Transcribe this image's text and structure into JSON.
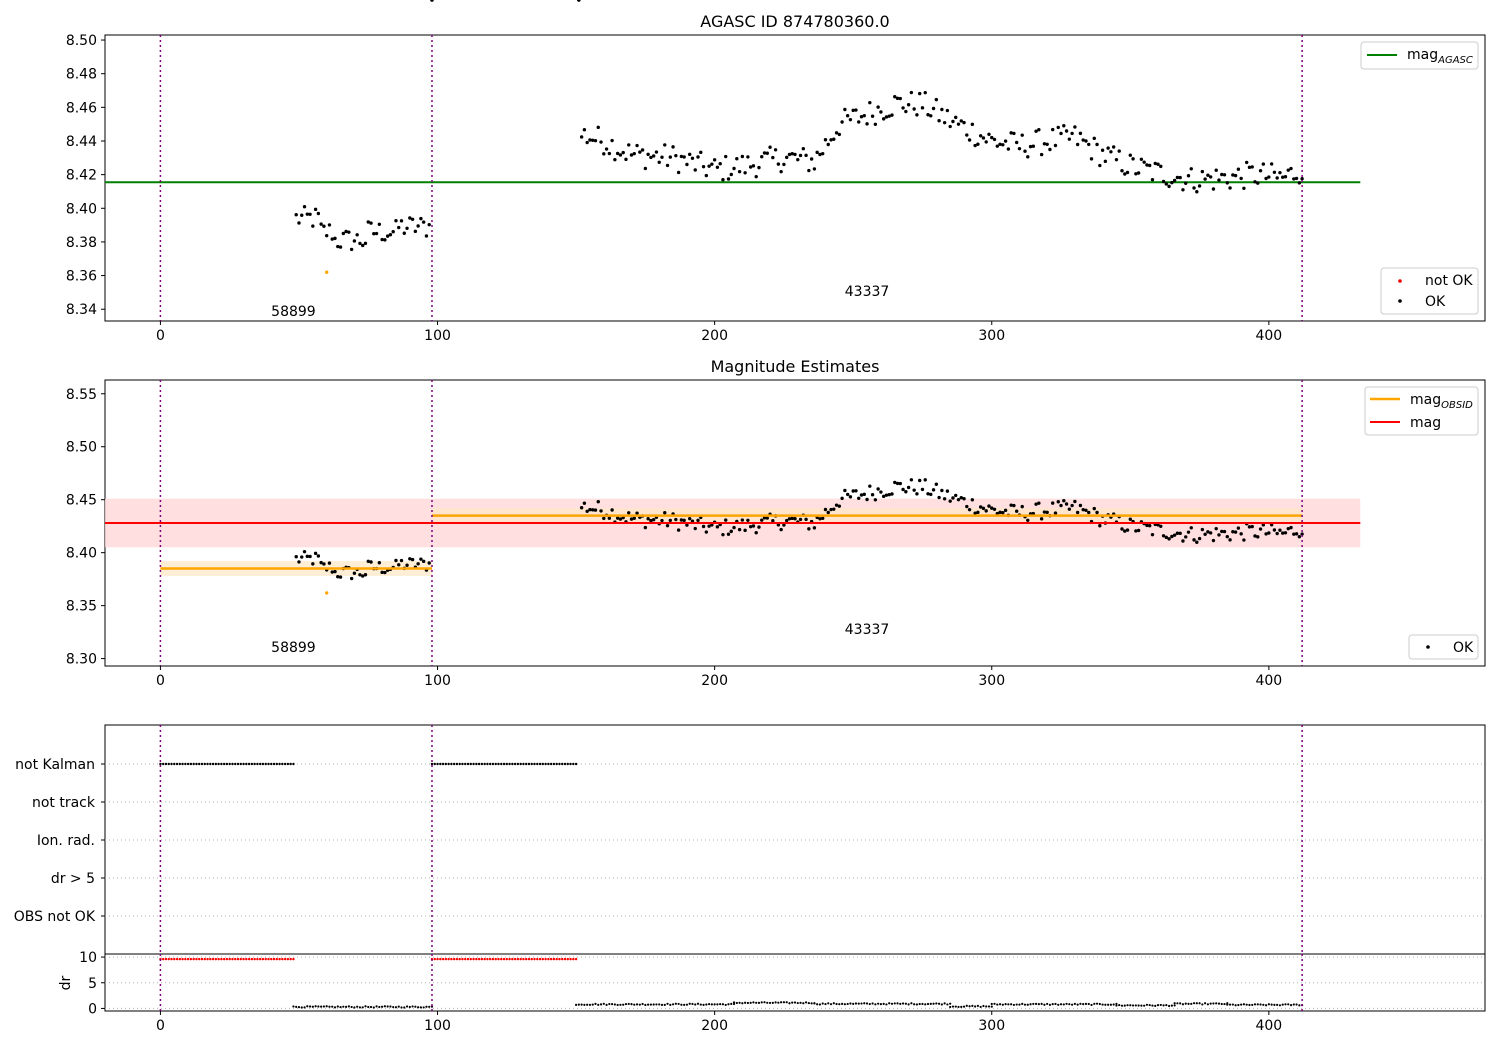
{
  "figure": {
    "colors": {
      "ok": "#000000",
      "not_ok": "#ff0000",
      "agasc_line": "#008000",
      "obsid_line": "#ffa500",
      "mag_line": "#ff0000",
      "band_mag": "#ffd7d7",
      "band_obsid": "#ffe7c4",
      "vline": "#800080",
      "grid": "#b0b0b0"
    }
  },
  "chart_data": [
    {
      "id": "top",
      "type": "scatter",
      "title": "AGASC ID 874780360.0",
      "xlim": [
        -20,
        478
      ],
      "ylim": [
        8.333,
        8.503
      ],
      "xticks": [
        0,
        100,
        200,
        300,
        400
      ],
      "yticks": [
        8.34,
        8.36,
        8.38,
        8.4,
        8.42,
        8.44,
        8.46,
        8.48,
        8.5
      ],
      "hline": {
        "name": "mag_AGASC",
        "y": 8.4155,
        "x0": -20,
        "x1": 433
      },
      "annotations": [
        {
          "text": "58899",
          "x": 48,
          "y": 8.336
        },
        {
          "text": "43337",
          "x": 255,
          "y": 8.348
        }
      ],
      "outliers": [
        {
          "x": 60,
          "y": 8.362
        }
      ],
      "vlines": [
        0,
        98,
        412
      ],
      "legend": [
        {
          "label": "mag",
          "sub": "AGASC",
          "kind": "line"
        }
      ],
      "legend2": [
        {
          "label": "not OK",
          "kind": "dot-red"
        },
        {
          "label": "OK",
          "kind": "dot"
        }
      ]
    },
    {
      "id": "middle",
      "type": "scatter",
      "title": "Magnitude Estimates",
      "xlim": [
        -20,
        478
      ],
      "ylim": [
        8.293,
        8.563
      ],
      "xticks": [
        0,
        100,
        200,
        300,
        400
      ],
      "yticks": [
        8.3,
        8.35,
        8.4,
        8.45,
        8.5,
        8.55
      ],
      "mag": {
        "y": 8.428,
        "lo": 8.405,
        "hi": 8.451,
        "x0": -20,
        "x1": 433
      },
      "obsid": [
        {
          "x0": 0,
          "x1": 98,
          "y": 8.385,
          "lo": 8.378,
          "hi": 8.392
        },
        {
          "x0": 98,
          "x1": 412,
          "y": 8.435,
          "lo": 8.428,
          "hi": 8.442
        }
      ],
      "annotations": [
        {
          "text": "58899",
          "x": 48,
          "y": 8.306
        },
        {
          "text": "43337",
          "x": 255,
          "y": 8.323
        }
      ],
      "outliers": [
        {
          "x": 60,
          "y": 8.362
        }
      ],
      "vlines": [
        0,
        98,
        412
      ],
      "legend": [
        {
          "label": "mag",
          "sub": "OBSID",
          "kind": "line-orange"
        },
        {
          "label": "mag",
          "sub": "",
          "kind": "line-red"
        }
      ],
      "legend2": [
        {
          "label": "OK",
          "kind": "dot"
        }
      ]
    },
    {
      "id": "flags",
      "type": "scatter",
      "xlim": [
        -20,
        478
      ],
      "categories": [
        "not Kalman",
        "not track",
        "Ion. rad.",
        "dr > 5",
        "OBS not OK"
      ],
      "segments": [
        {
          "category": "not Kalman",
          "x0": 0,
          "x1": 48
        },
        {
          "category": "not Kalman",
          "x0": 98,
          "x1": 150
        }
      ],
      "vlines": [
        0,
        98,
        412
      ]
    },
    {
      "id": "dr",
      "type": "scatter",
      "ylabel": "dr",
      "xlim": [
        -20,
        478
      ],
      "ylim": [
        -0.5,
        10.6
      ],
      "xticks": [
        0,
        100,
        200,
        300,
        400
      ],
      "yticks": [
        0,
        5,
        10
      ],
      "high": [
        {
          "x0": 0,
          "x1": 48,
          "y": 9.6
        },
        {
          "x0": 98,
          "x1": 150,
          "y": 9.6
        }
      ],
      "low": [
        {
          "x0": 48,
          "x1": 98,
          "y": 0.3
        },
        {
          "x0": 150,
          "x1": 207,
          "y": 0.8
        },
        {
          "x0": 207,
          "x1": 236,
          "y": 1.1
        },
        {
          "x0": 236,
          "x1": 285,
          "y": 0.9
        },
        {
          "x0": 285,
          "x1": 300,
          "y": 0.4
        },
        {
          "x0": 300,
          "x1": 345,
          "y": 0.8
        },
        {
          "x0": 345,
          "x1": 366,
          "y": 0.6
        },
        {
          "x0": 366,
          "x1": 385,
          "y": 0.9
        },
        {
          "x0": 385,
          "x1": 412,
          "y": 0.7
        }
      ],
      "vlines": [
        0,
        98,
        412
      ]
    }
  ]
}
